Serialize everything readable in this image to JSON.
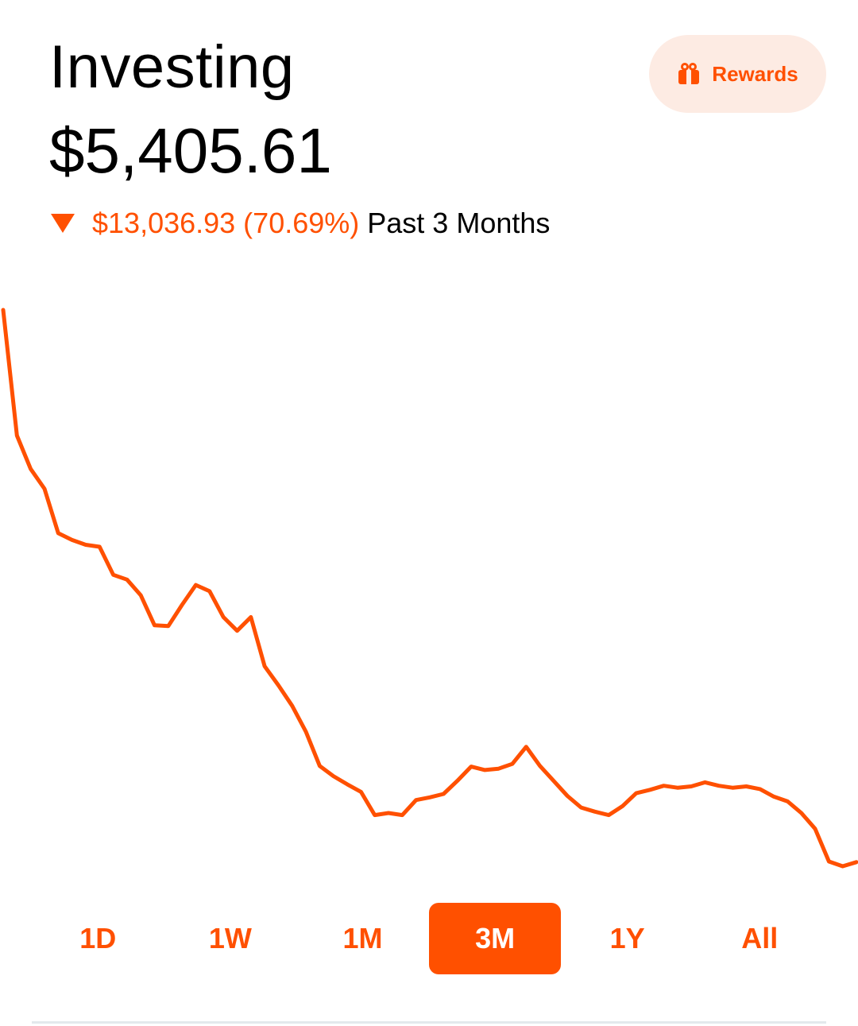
{
  "header": {
    "title": "Investing",
    "balance": "$5,405.61",
    "change": {
      "direction": "down",
      "amount_text": "$13,036.93 (70.69%)",
      "period_text": "Past 3 Months"
    },
    "rewards": {
      "label": "Rewards",
      "icon": "gift-icon"
    }
  },
  "colors": {
    "accent": "#ff5000",
    "accent_soft": "#fdebe3",
    "text": "#000000",
    "divider": "#e3e9ec"
  },
  "chart_data": {
    "type": "line",
    "title": "",
    "xlabel": "",
    "ylabel": "",
    "grid": false,
    "series": [
      {
        "values": [
          100,
          81.6,
          76.7,
          73.8,
          67.3,
          66.3,
          65.6,
          65.3,
          61.2,
          60.5,
          58.2,
          53.8,
          53.7,
          56.8,
          59.7,
          58.8,
          55.0,
          53.0,
          55.0,
          47.8,
          45.0,
          42.0,
          38.2,
          33.2,
          31.7,
          30.5,
          29.4,
          26.0,
          26.3,
          26.0,
          28.2,
          28.6,
          29.1,
          31.0,
          33.1,
          32.6,
          32.8,
          33.5,
          36.0,
          33.2,
          31.0,
          28.8,
          27.1,
          26.5,
          26.0,
          27.3,
          29.2,
          29.7,
          30.3,
          30.0,
          30.2,
          30.8,
          30.3,
          30.0,
          30.2,
          29.8,
          28.7,
          28.0,
          26.3,
          24.0,
          19.2,
          18.5,
          19.1
        ]
      }
    ]
  },
  "range_tabs": [
    {
      "label": "1D",
      "active": false
    },
    {
      "label": "1W",
      "active": false
    },
    {
      "label": "1M",
      "active": false
    },
    {
      "label": "3M",
      "active": true
    },
    {
      "label": "1Y",
      "active": false
    },
    {
      "label": "All",
      "active": false
    }
  ]
}
